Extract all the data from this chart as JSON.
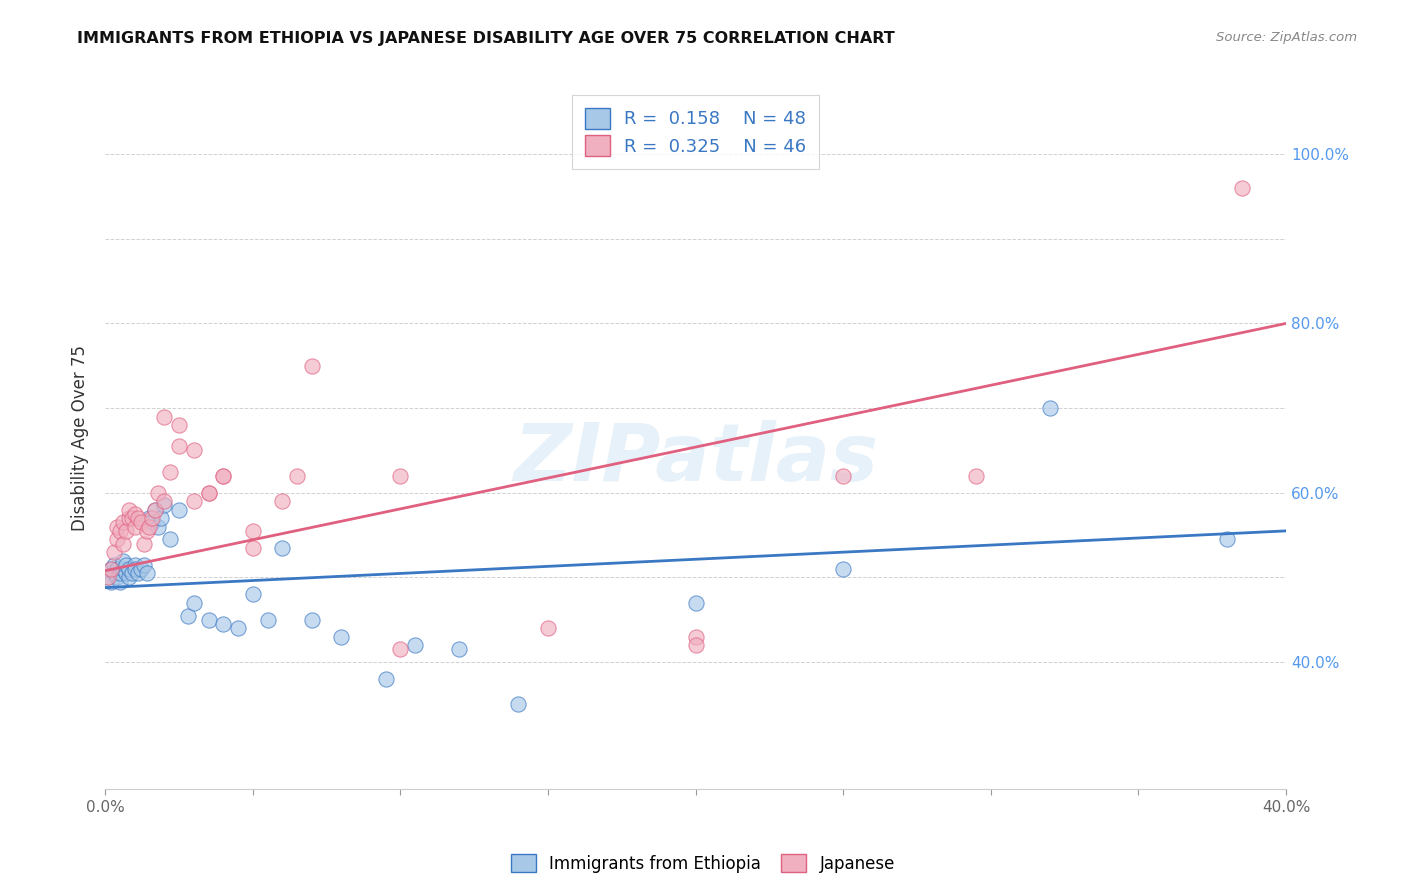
{
  "title": "IMMIGRANTS FROM ETHIOPIA VS JAPANESE DISABILITY AGE OVER 75 CORRELATION CHART",
  "source": "Source: ZipAtlas.com",
  "ylabel": "Disability Age Over 75",
  "xlim": [
    0.0,
    0.4
  ],
  "ylim": [
    0.25,
    1.08
  ],
  "xticks": [
    0.0,
    0.05,
    0.1,
    0.15,
    0.2,
    0.25,
    0.3,
    0.35,
    0.4
  ],
  "yticks_right": [
    0.4,
    0.5,
    0.6,
    0.7,
    0.8,
    0.9,
    1.0
  ],
  "ytick_labels_right": [
    "40.0%",
    "",
    "60.0%",
    "",
    "80.0%",
    "",
    "100.0%"
  ],
  "blue_R": "0.158",
  "blue_N": "48",
  "pink_R": "0.325",
  "pink_N": "46",
  "blue_scatter_color": "#a8c8e8",
  "pink_scatter_color": "#f0b0c0",
  "blue_line_color": "#3a78c3",
  "pink_line_color": "#e06080",
  "legend_label_1": "Immigrants from Ethiopia",
  "legend_label_2": "Japanese",
  "watermark": "ZIPatlas",
  "blue_scatter_x": [
    0.001,
    0.002,
    0.002,
    0.003,
    0.003,
    0.004,
    0.004,
    0.005,
    0.005,
    0.006,
    0.006,
    0.007,
    0.007,
    0.008,
    0.008,
    0.009,
    0.01,
    0.01,
    0.011,
    0.012,
    0.013,
    0.014,
    0.015,
    0.016,
    0.017,
    0.018,
    0.019,
    0.02,
    0.022,
    0.025,
    0.028,
    0.03,
    0.035,
    0.04,
    0.045,
    0.05,
    0.055,
    0.06,
    0.07,
    0.08,
    0.095,
    0.105,
    0.12,
    0.14,
    0.2,
    0.25,
    0.32,
    0.38
  ],
  "blue_scatter_y": [
    0.5,
    0.495,
    0.51,
    0.505,
    0.515,
    0.5,
    0.51,
    0.495,
    0.505,
    0.51,
    0.52,
    0.505,
    0.515,
    0.5,
    0.51,
    0.505,
    0.515,
    0.51,
    0.505,
    0.51,
    0.515,
    0.505,
    0.57,
    0.565,
    0.58,
    0.56,
    0.57,
    0.585,
    0.545,
    0.58,
    0.455,
    0.47,
    0.45,
    0.445,
    0.44,
    0.48,
    0.45,
    0.535,
    0.45,
    0.43,
    0.38,
    0.42,
    0.415,
    0.35,
    0.47,
    0.51,
    0.7,
    0.545
  ],
  "pink_scatter_x": [
    0.001,
    0.002,
    0.003,
    0.004,
    0.004,
    0.005,
    0.006,
    0.006,
    0.007,
    0.008,
    0.008,
    0.009,
    0.01,
    0.01,
    0.011,
    0.012,
    0.013,
    0.014,
    0.015,
    0.016,
    0.017,
    0.018,
    0.02,
    0.022,
    0.025,
    0.03,
    0.035,
    0.04,
    0.05,
    0.06,
    0.065,
    0.1,
    0.15,
    0.2,
    0.25,
    0.02,
    0.025,
    0.03,
    0.035,
    0.04,
    0.05,
    0.07,
    0.1,
    0.2,
    0.295,
    0.385
  ],
  "pink_scatter_y": [
    0.5,
    0.51,
    0.53,
    0.545,
    0.56,
    0.555,
    0.54,
    0.565,
    0.555,
    0.57,
    0.58,
    0.57,
    0.56,
    0.575,
    0.57,
    0.565,
    0.54,
    0.555,
    0.56,
    0.57,
    0.58,
    0.6,
    0.59,
    0.625,
    0.655,
    0.59,
    0.6,
    0.62,
    0.555,
    0.59,
    0.62,
    0.62,
    0.44,
    0.43,
    0.62,
    0.69,
    0.68,
    0.65,
    0.6,
    0.62,
    0.535,
    0.75,
    0.415,
    0.42,
    0.62,
    0.96
  ],
  "blue_trend_x": [
    0.0,
    0.4
  ],
  "blue_trend_y": [
    0.488,
    0.555
  ],
  "pink_trend_x": [
    0.0,
    0.4
  ],
  "pink_trend_y": [
    0.508,
    0.8
  ]
}
